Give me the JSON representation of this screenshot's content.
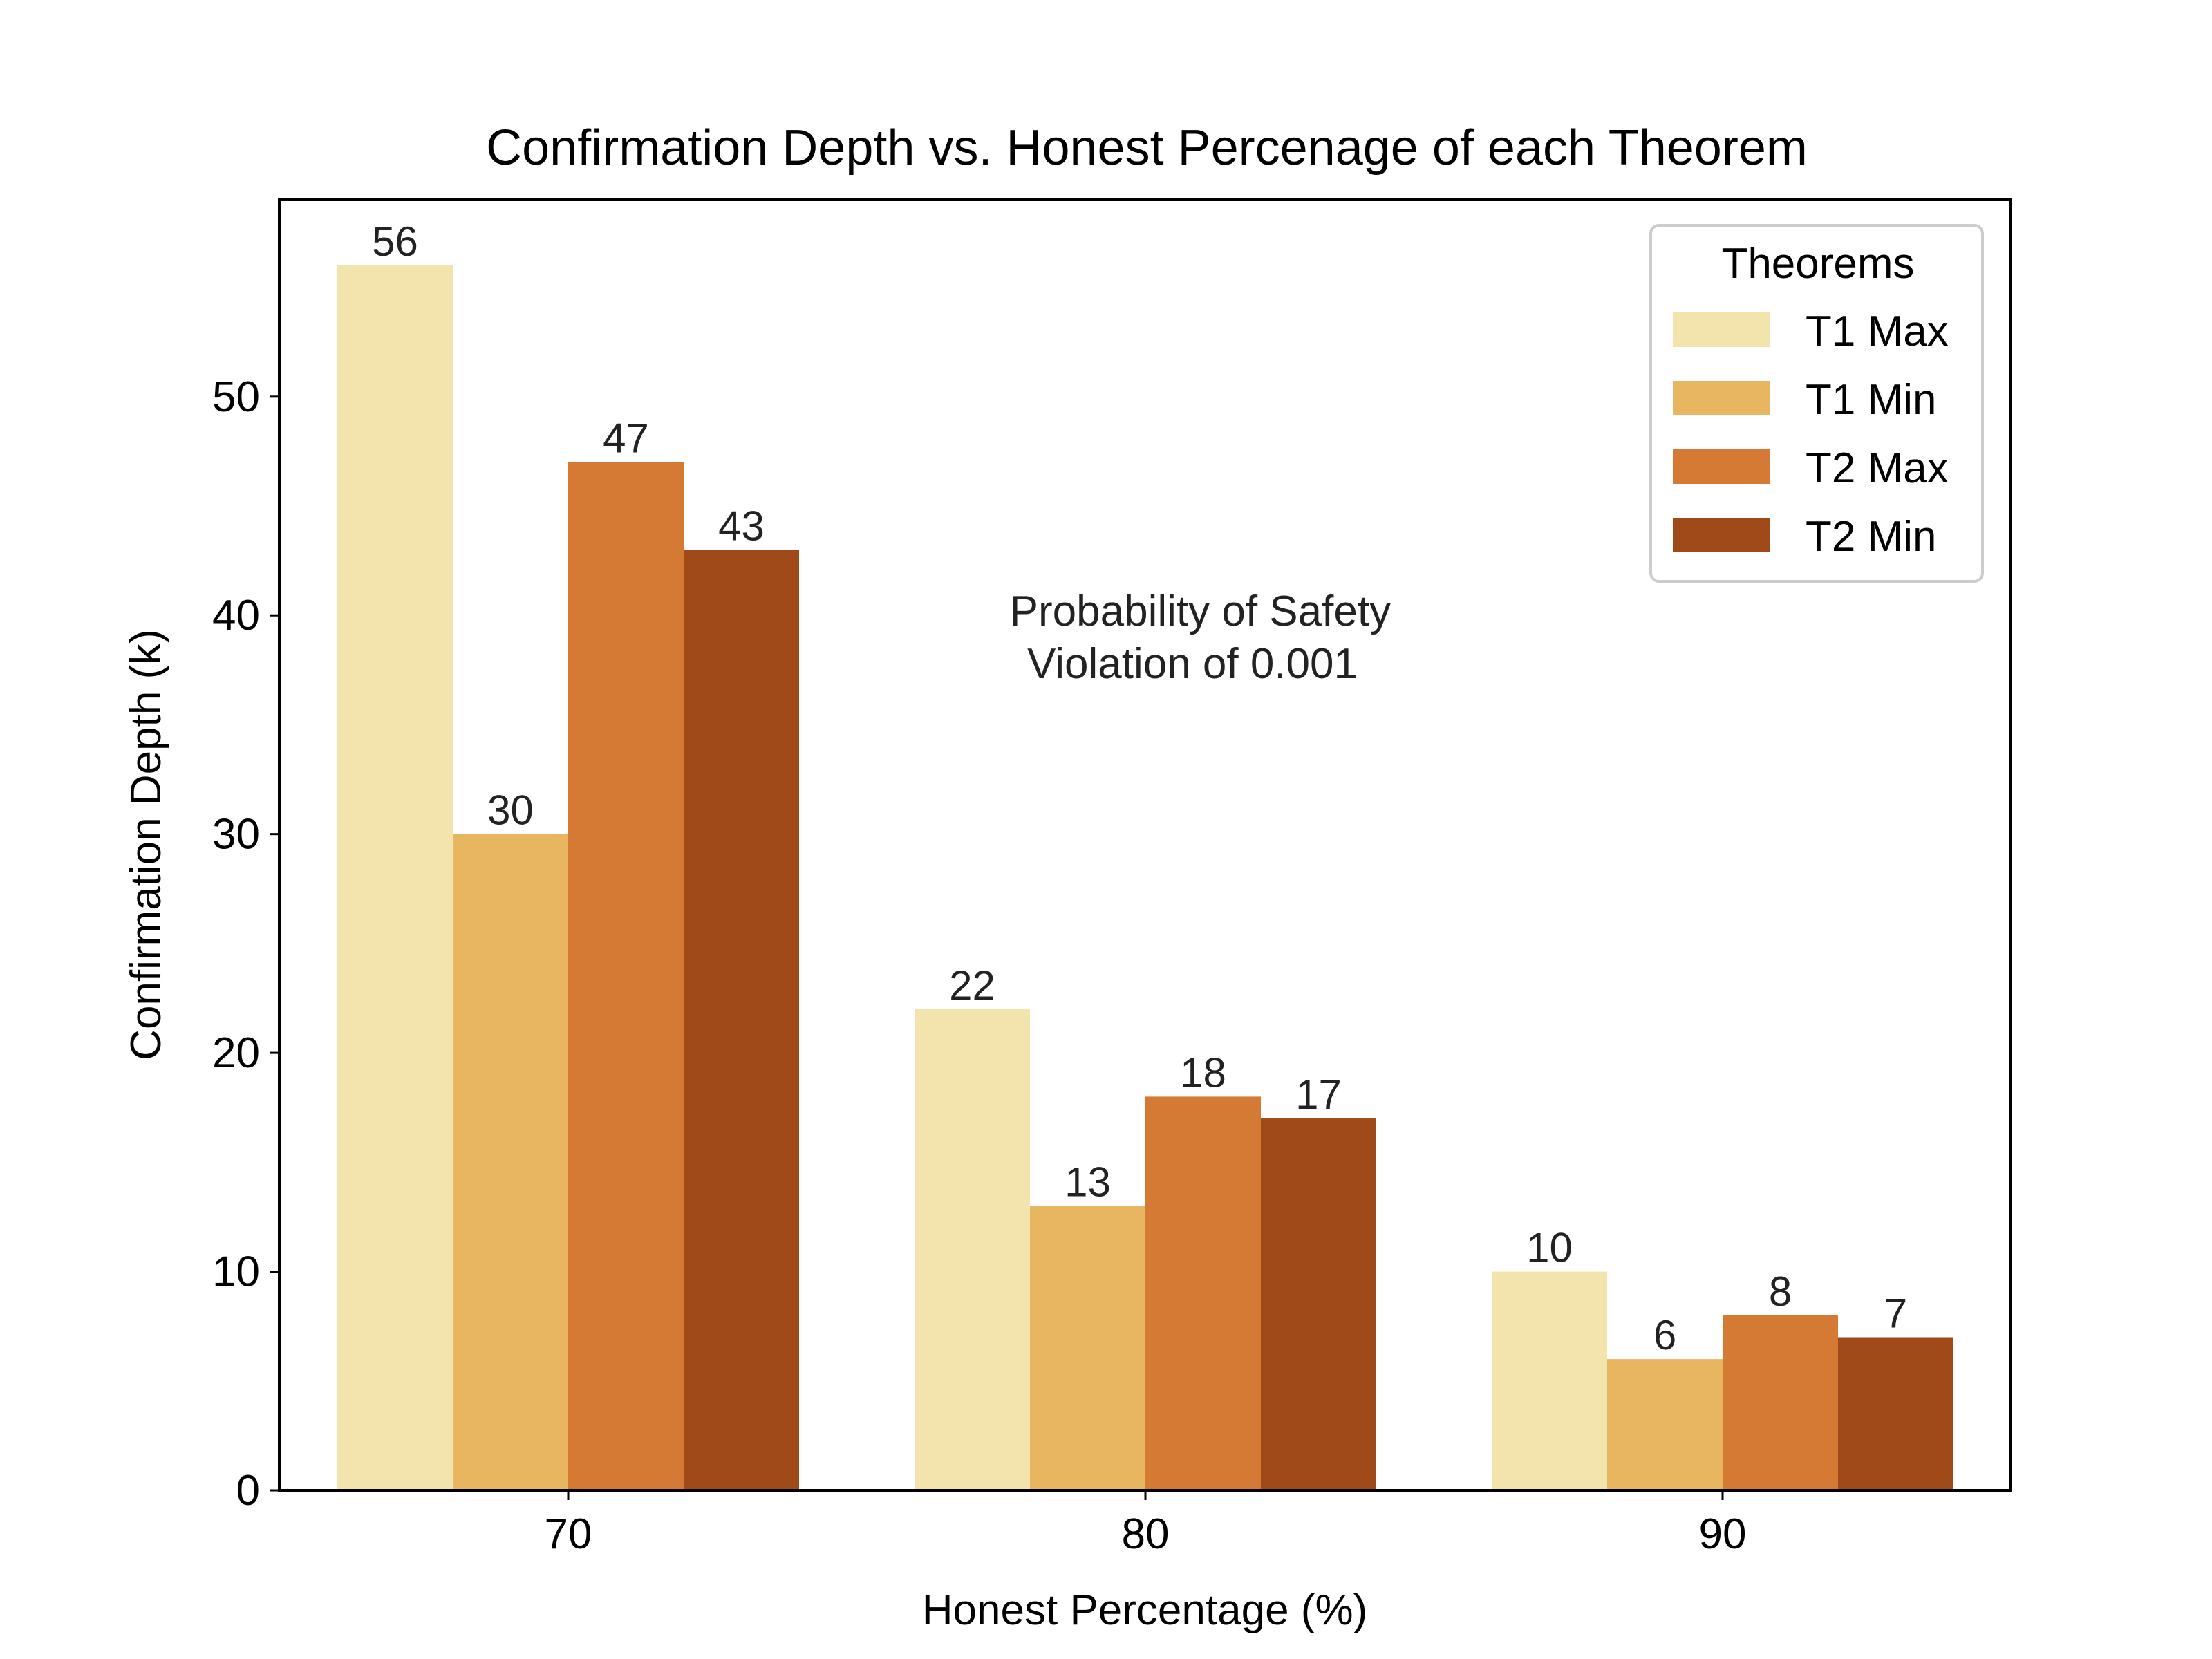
{
  "chart_data": {
    "type": "bar",
    "title": "Confirmation Depth vs. Honest Percenage of each Theorem",
    "xlabel": "Honest Percentage (%)",
    "ylabel": "Confirmation Depth (k)",
    "categories": [
      "70",
      "80",
      "90"
    ],
    "ylim": [
      0,
      59
    ],
    "yticks": [
      0,
      10,
      20,
      30,
      40,
      50
    ],
    "grid": false,
    "legend": {
      "title": "Theorems",
      "placement": "top-right"
    },
    "annotation": [
      "Probability of Safety",
      "Violation of 0.001"
    ],
    "series": [
      {
        "name": "T1 Max",
        "color": "#f3e4ad",
        "values": [
          56,
          22,
          10
        ]
      },
      {
        "name": "T1 Min",
        "color": "#e8b560",
        "values": [
          30,
          13,
          6
        ]
      },
      {
        "name": "T2 Max",
        "color": "#d47a34",
        "values": [
          47,
          18,
          8
        ]
      },
      {
        "name": "T2 Min",
        "color": "#a04a1a",
        "values": [
          43,
          17,
          7
        ]
      }
    ]
  }
}
